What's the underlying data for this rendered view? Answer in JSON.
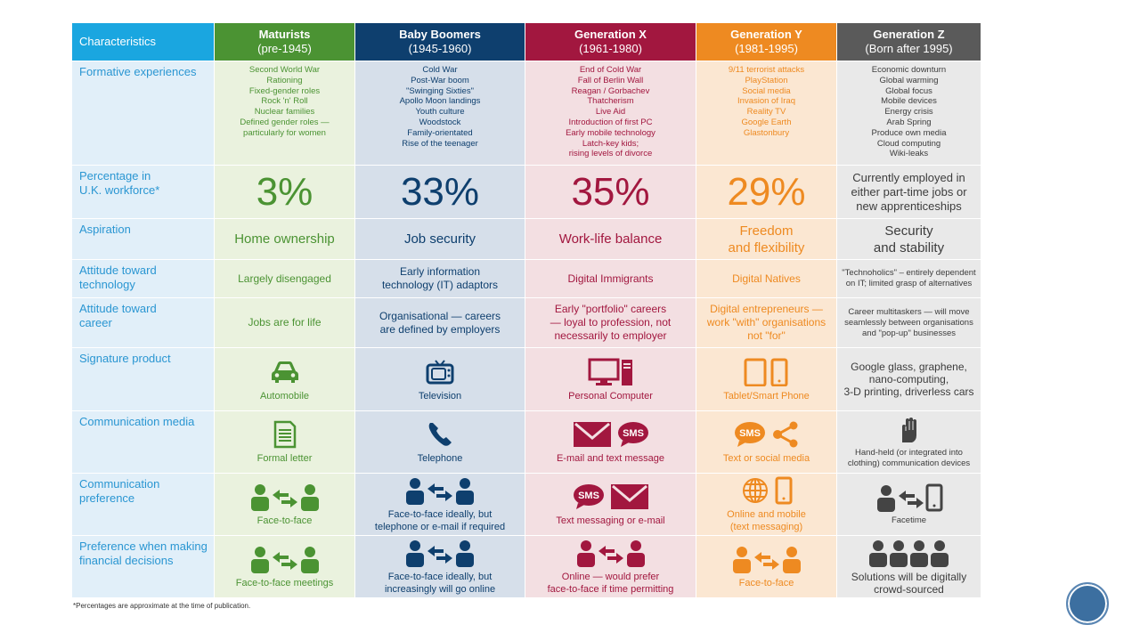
{
  "header": {
    "characteristics": "Characteristics",
    "generations": [
      {
        "name": "Maturists",
        "years": "(pre-1945)"
      },
      {
        "name": "Baby Boomers",
        "years": "(1945-1960)"
      },
      {
        "name": "Generation X",
        "years": "(1961-1980)"
      },
      {
        "name": "Generation Y",
        "years": "(1981-1995)"
      },
      {
        "name": "Generation Z",
        "years": "(Born after 1995)"
      }
    ]
  },
  "colors": {
    "maturists": "#4b9333",
    "baby_boomers": "#0e3f6e",
    "generation_x": "#a2173f",
    "generation_y": "#ee8a21",
    "generation_z": "#5a5a5a",
    "characteristics": "#1aa6e0"
  },
  "rows": {
    "formative": {
      "label": "Formative experiences",
      "values": [
        [
          "Second World War",
          "Rationing",
          "Fixed-gender roles",
          "Rock 'n' Roll",
          "Nuclear families",
          "Defined gender roles —",
          "particularly for women"
        ],
        [
          "Cold War",
          "Post-War boom",
          "\"Swinging Sixties\"",
          "Apollo Moon landings",
          "Youth culture",
          "Woodstock",
          "Family-orientated",
          "Rise of the teenager"
        ],
        [
          "End of Cold War",
          "Fall of Berlin Wall",
          "Reagan / Gorbachev",
          "Thatcherism",
          "Live Aid",
          "Introduction of first PC",
          "Early mobile technology",
          "Latch-key kids;",
          "rising levels of divorce"
        ],
        [
          "9/11 terrorist attacks",
          "PlayStation",
          "Social media",
          "Invasion of Iraq",
          "Reality TV",
          "Google Earth",
          "Glastonbury"
        ],
        [
          "Economic downturn",
          "Global warming",
          "Global focus",
          "Mobile devices",
          "Energy crisis",
          "Arab Spring",
          "Produce own media",
          "Cloud computing",
          "Wiki-leaks"
        ]
      ]
    },
    "percentage": {
      "label_line1": "Percentage in",
      "label_line2": "U.K. workforce*",
      "values": [
        "3%",
        "33%",
        "35%",
        "29%"
      ],
      "gen_z": [
        "Currently employed in",
        "either part-time jobs or",
        "new apprenticeships"
      ]
    },
    "aspiration": {
      "label": "Aspiration",
      "values": [
        [
          "Home ownership"
        ],
        [
          "Job security"
        ],
        [
          "Work-life balance"
        ],
        [
          "Freedom",
          "and flexibility"
        ],
        [
          "Security",
          "and stability"
        ]
      ]
    },
    "technology": {
      "label_line1": "Attitude toward",
      "label_line2": "technology",
      "values": [
        [
          "Largely disengaged"
        ],
        [
          "Early information",
          "technology (IT) adaptors"
        ],
        [
          "Digital Immigrants"
        ],
        [
          "Digital Natives"
        ],
        [
          "\"Technoholics\" – entirely dependent",
          "on IT; limited grasp of alternatives"
        ]
      ]
    },
    "career": {
      "label_line1": "Attitude toward",
      "label_line2": "career",
      "values": [
        [
          "Jobs are for life"
        ],
        [
          "Organisational — careers",
          "are defined by employers"
        ],
        [
          "Early \"portfolio\" careers",
          "— loyal to profession, not",
          "necessarily to employer"
        ],
        [
          "Digital entrepreneurs —",
          "work \"with\" organisations",
          "not \"for\""
        ],
        [
          "Career multitaskers — will move",
          "seamlessly between organisations",
          "and \"pop-up\" businesses"
        ]
      ]
    },
    "product": {
      "label": "Signature product",
      "values": [
        {
          "icon": "car-icon",
          "text": [
            "Automobile"
          ]
        },
        {
          "icon": "television-icon",
          "text": [
            "Television"
          ]
        },
        {
          "icon": "personal-computer-icon",
          "text": [
            "Personal Computer"
          ]
        },
        {
          "icon": "tablet-phone-icon",
          "text": [
            "Tablet/Smart Phone"
          ]
        },
        {
          "icon": "",
          "text": [
            "Google glass, graphene,",
            "nano-computing,",
            "3-D printing, driverless cars"
          ]
        }
      ]
    },
    "media": {
      "label": "Communication media",
      "values": [
        {
          "icon": "letter-icon",
          "text": [
            "Formal letter"
          ]
        },
        {
          "icon": "telephone-icon",
          "text": [
            "Telephone"
          ]
        },
        {
          "icon": "email-sms-icon",
          "text": [
            "E-mail and text message"
          ]
        },
        {
          "icon": "sms-share-icon",
          "text": [
            "Text or social media"
          ]
        },
        {
          "icon": "hand-icon",
          "text": [
            "Hand-held (or integrated into",
            "clothing) communication devices"
          ]
        }
      ],
      "sms": "SMS"
    },
    "preference": {
      "label_line1": "Communication",
      "label_line2": "preference",
      "values": [
        {
          "icon": "people-exchange-icon",
          "text": [
            "Face-to-face"
          ]
        },
        {
          "icon": "people-exchange-icon",
          "text": [
            "Face-to-face ideally, but",
            "telephone or e-mail if required"
          ]
        },
        {
          "icon": "sms-email-icon",
          "text": [
            "Text messaging or e-mail"
          ]
        },
        {
          "icon": "globe-phone-icon",
          "text": [
            "Online and mobile",
            "(text messaging)"
          ]
        },
        {
          "icon": "person-phone-icon",
          "text": [
            "Facetime"
          ]
        }
      ]
    },
    "financial": {
      "label_line1": "Preference when making",
      "label_line2": "financial decisions",
      "values": [
        {
          "icon": "people-exchange-icon",
          "text": [
            "Face-to-face meetings"
          ]
        },
        {
          "icon": "people-exchange-icon",
          "text": [
            "Face-to-face ideally, but",
            "increasingly will go online"
          ]
        },
        {
          "icon": "people-exchange-icon",
          "text": [
            "Online — would prefer",
            "face-to-face if time permitting"
          ]
        },
        {
          "icon": "people-exchange-icon",
          "text": [
            "Face-to-face"
          ]
        },
        {
          "icon": "crowd-icon",
          "text": [
            "Solutions will be digitally",
            "crowd-sourced"
          ]
        }
      ]
    }
  },
  "footnote": "*Percentages are approximate at the time of publication."
}
